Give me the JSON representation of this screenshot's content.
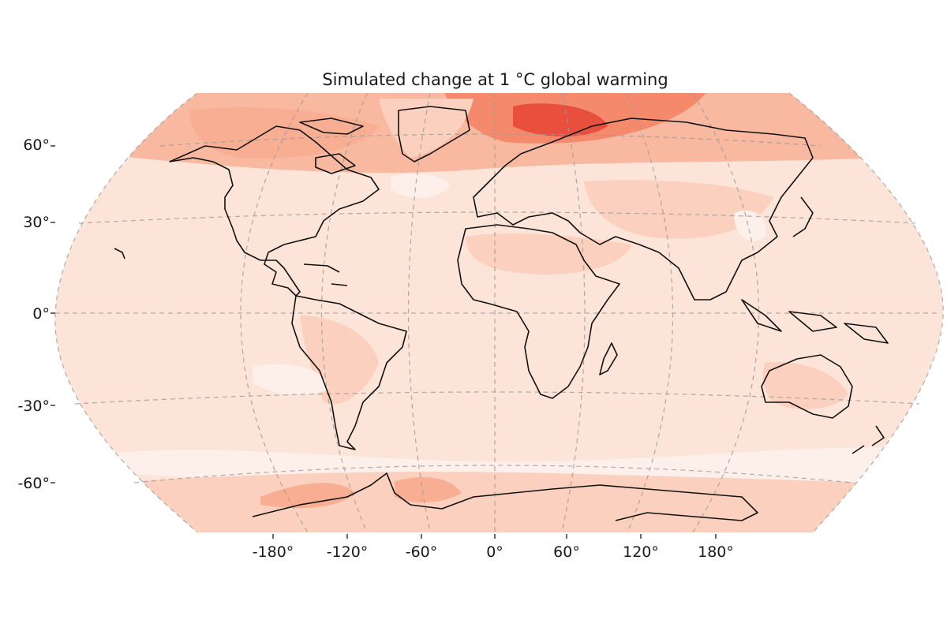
{
  "title": "Simulated change at 1 °C global warming",
  "colors": {
    "background": "#fde4d9",
    "light": "#fdf0ea",
    "moderate": "#fbd0be",
    "warm": "#f7ae92",
    "hot": "#f48a6b",
    "hottest": "#e8503d",
    "coast": "#111111",
    "grid": "#9a9a9a"
  },
  "lat_labels": [
    "60°",
    "30°",
    "0°",
    "-30°",
    "-60°"
  ],
  "lon_labels": [
    "-180°",
    "-120°",
    "-60°",
    "0°",
    "60°",
    "120°",
    "180°"
  ]
}
